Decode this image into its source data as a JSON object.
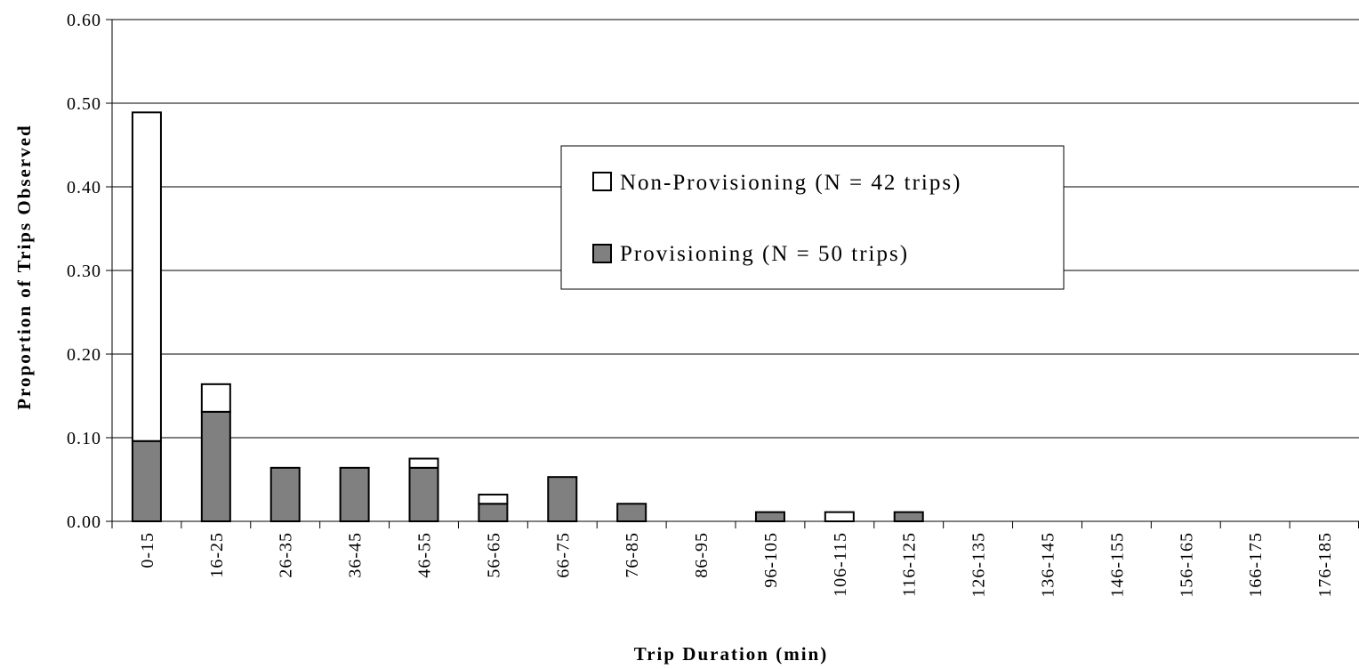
{
  "chart_data": {
    "type": "bar",
    "stacked": true,
    "title": "",
    "xlabel": "Trip Duration (min)",
    "ylabel": "Proportion of Trips Observed",
    "ylim": [
      0,
      0.6
    ],
    "yticks": [
      "0.00",
      "0.10",
      "0.20",
      "0.30",
      "0.40",
      "0.50",
      "0.60"
    ],
    "grid": true,
    "legend_position": "center-right",
    "categories": [
      "0-15",
      "16-25",
      "26-35",
      "36-45",
      "46-55",
      "56-65",
      "66-75",
      "76-85",
      "86-95",
      "96-105",
      "106-115",
      "116-125",
      "126-135",
      "136-145",
      "146-155",
      "156-165",
      "166-175",
      "176-185"
    ],
    "series": [
      {
        "name": "Provisioning (N = 50 trips)",
        "color": "#808080",
        "values": [
          0.096,
          0.131,
          0.064,
          0.064,
          0.064,
          0.021,
          0.053,
          0.021,
          0,
          0.011,
          0,
          0.011,
          0,
          0,
          0,
          0,
          0,
          0
        ]
      },
      {
        "name": "Non-Provisioning (N = 42 trips)",
        "color": "#ffffff",
        "values": [
          0.393,
          0.033,
          0,
          0,
          0.011,
          0.011,
          0,
          0,
          0,
          0,
          0.011,
          0,
          0,
          0,
          0,
          0,
          0,
          0
        ]
      }
    ],
    "legend": [
      {
        "label": "Non-Provisioning (N = 42 trips)",
        "color": "#ffffff"
      },
      {
        "label": "Provisioning (N = 50 trips)",
        "color": "#808080"
      }
    ]
  }
}
